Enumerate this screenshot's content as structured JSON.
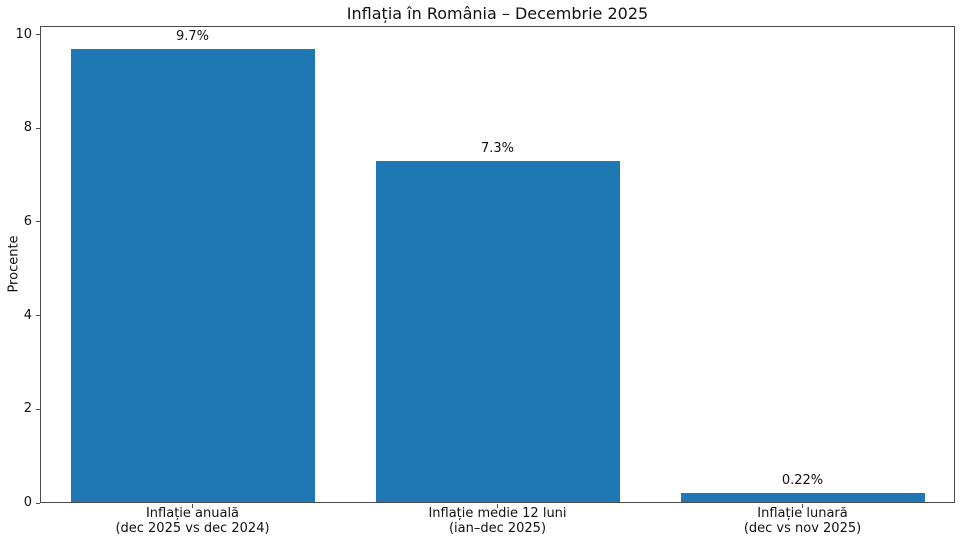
{
  "chart_data": {
    "type": "bar",
    "title": "Inflația în România – Decembrie 2025",
    "xlabel": "",
    "ylabel": "Procente",
    "categories": [
      "Inflație anuală\n(dec 2025 vs dec 2024)",
      "Inflație medie 12 luni\n(ian–dec 2025)",
      "Inflație lunară\n(dec vs nov 2025)"
    ],
    "values": [
      9.7,
      7.3,
      0.22
    ],
    "bar_labels": [
      "9.7%",
      "7.3%",
      "0.22%"
    ],
    "yticks": [
      0,
      2,
      4,
      6,
      8,
      10
    ],
    "ylim": [
      0,
      10.185
    ],
    "bar_color": "#1f77b4",
    "grid": false,
    "legend": null,
    "background_color": "#ffffff"
  }
}
